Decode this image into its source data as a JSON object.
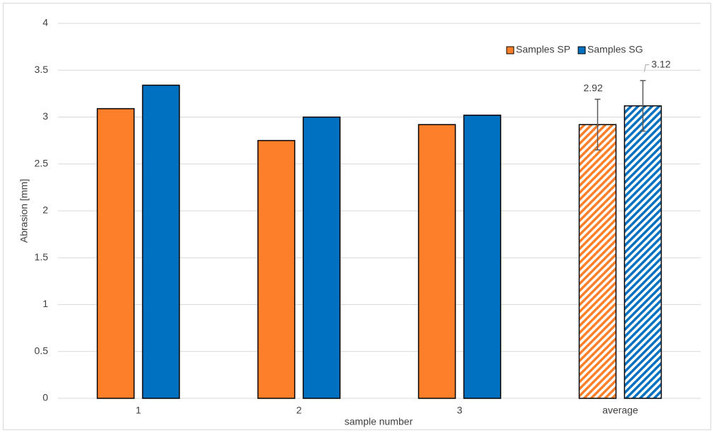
{
  "chart_data": {
    "type": "bar",
    "x_label": "sample number",
    "y_label": "Abrasion [mm]",
    "categories": [
      "1",
      "2",
      "3",
      "average"
    ],
    "series": [
      {
        "name": "Samples SP",
        "color": "#fd7f2a",
        "values": [
          3.09,
          2.75,
          2.92,
          2.92
        ],
        "errors": [
          null,
          null,
          null,
          0.27
        ]
      },
      {
        "name": "Samples SG",
        "color": "#0070c0",
        "values": [
          3.34,
          3.0,
          3.02,
          3.12
        ],
        "errors": [
          null,
          null,
          null,
          0.27
        ]
      }
    ],
    "hatched": [
      false,
      false,
      false,
      true
    ],
    "data_labels": [
      false,
      false,
      false,
      true
    ],
    "ylim": [
      0,
      4
    ],
    "yticks": [
      0,
      0.5,
      1,
      1.5,
      2,
      2.5,
      3,
      3.5,
      4
    ],
    "grid": true,
    "legend": "upper right"
  }
}
